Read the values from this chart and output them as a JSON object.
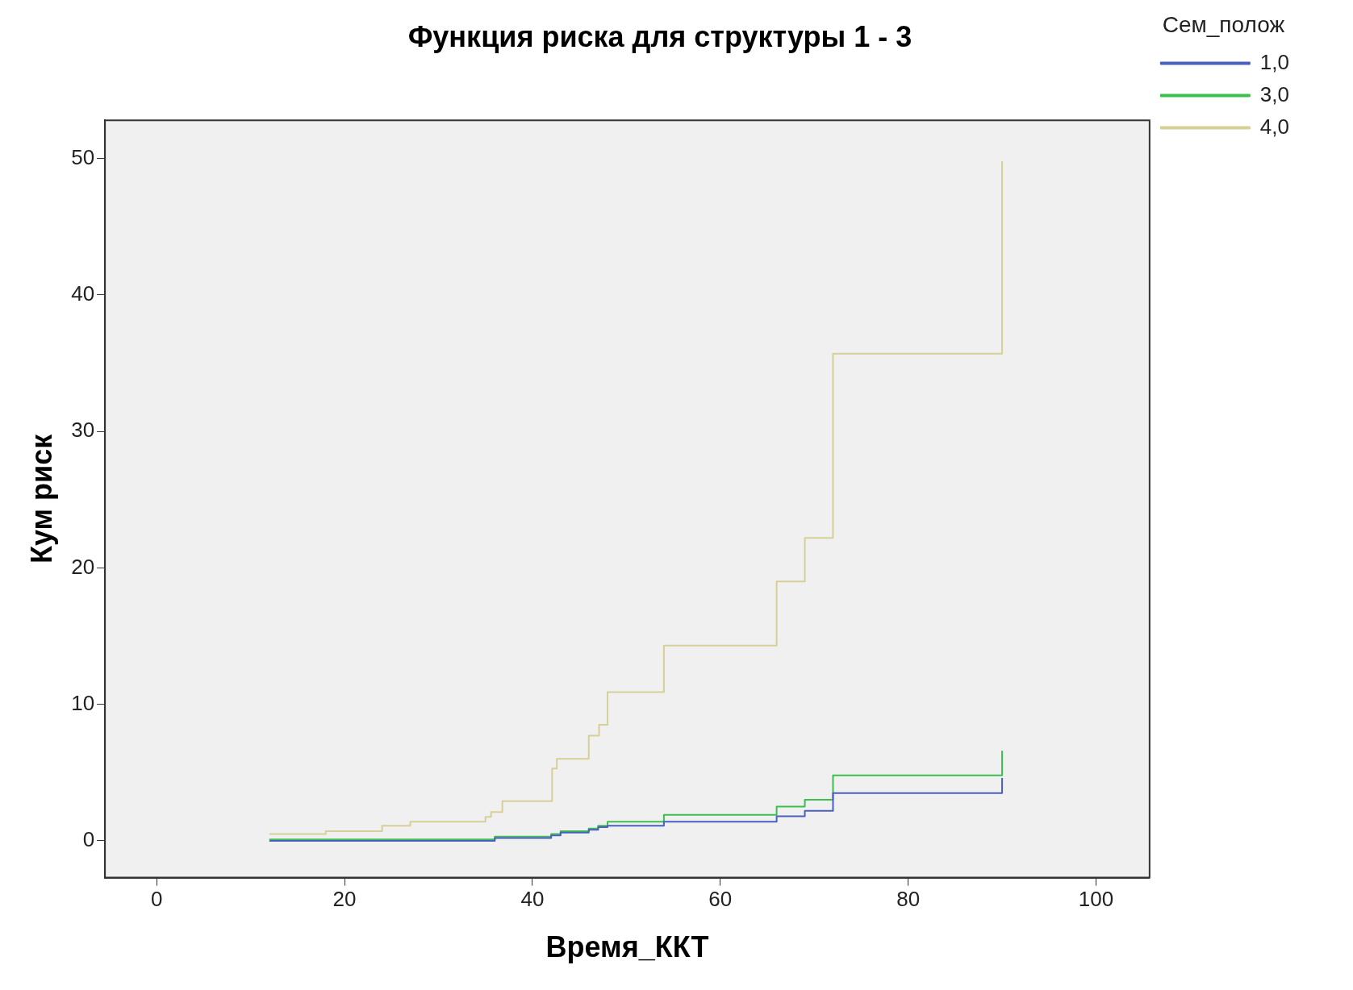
{
  "chart_data": {
    "type": "step",
    "title": "Функция риска для структуры 1 - 3",
    "xlabel": "Время_ККТ",
    "ylabel": "Кум риск",
    "legend_title": "Сем_полож",
    "legend": "top right",
    "grid": false,
    "marker": "none",
    "xlim": [
      -5.5,
      105.7
    ],
    "xticks": [
      0,
      20,
      40,
      60,
      80,
      100
    ],
    "ylim": [
      -2.7,
      52.8
    ],
    "yticks": [
      0,
      10,
      20,
      30,
      40,
      50
    ],
    "series": [
      {
        "name": "1,0",
        "color": "#4a5fc0",
        "x": [
          12,
          36,
          42,
          43,
          46,
          47,
          48,
          54,
          66,
          69,
          72,
          90,
          90
        ],
        "values": [
          0,
          0.2,
          0.4,
          0.6,
          0.8,
          1.0,
          1.1,
          1.4,
          1.8,
          2.2,
          3.5,
          3.5,
          4.6
        ]
      },
      {
        "name": "3,0",
        "color": "#3cbf4e",
        "x": [
          12,
          36,
          42,
          43,
          46,
          47,
          48,
          54,
          66,
          69,
          72,
          90,
          90
        ],
        "values": [
          0.1,
          0.3,
          0.5,
          0.7,
          0.9,
          1.1,
          1.4,
          1.9,
          2.5,
          3.0,
          4.8,
          4.8,
          6.6
        ]
      },
      {
        "name": "4,0",
        "color": "#d6cf96",
        "x": [
          12,
          18,
          24,
          27,
          35,
          35.6,
          36.8,
          42.1,
          42.6,
          46,
          47.1,
          48,
          54,
          66,
          69,
          72,
          90,
          90
        ],
        "values": [
          0.5,
          0.7,
          1.1,
          1.4,
          1.75,
          2.1,
          2.9,
          5.3,
          6.0,
          7.7,
          8.5,
          10.9,
          14.3,
          19.0,
          22.2,
          35.7,
          35.7,
          49.8
        ]
      }
    ]
  }
}
